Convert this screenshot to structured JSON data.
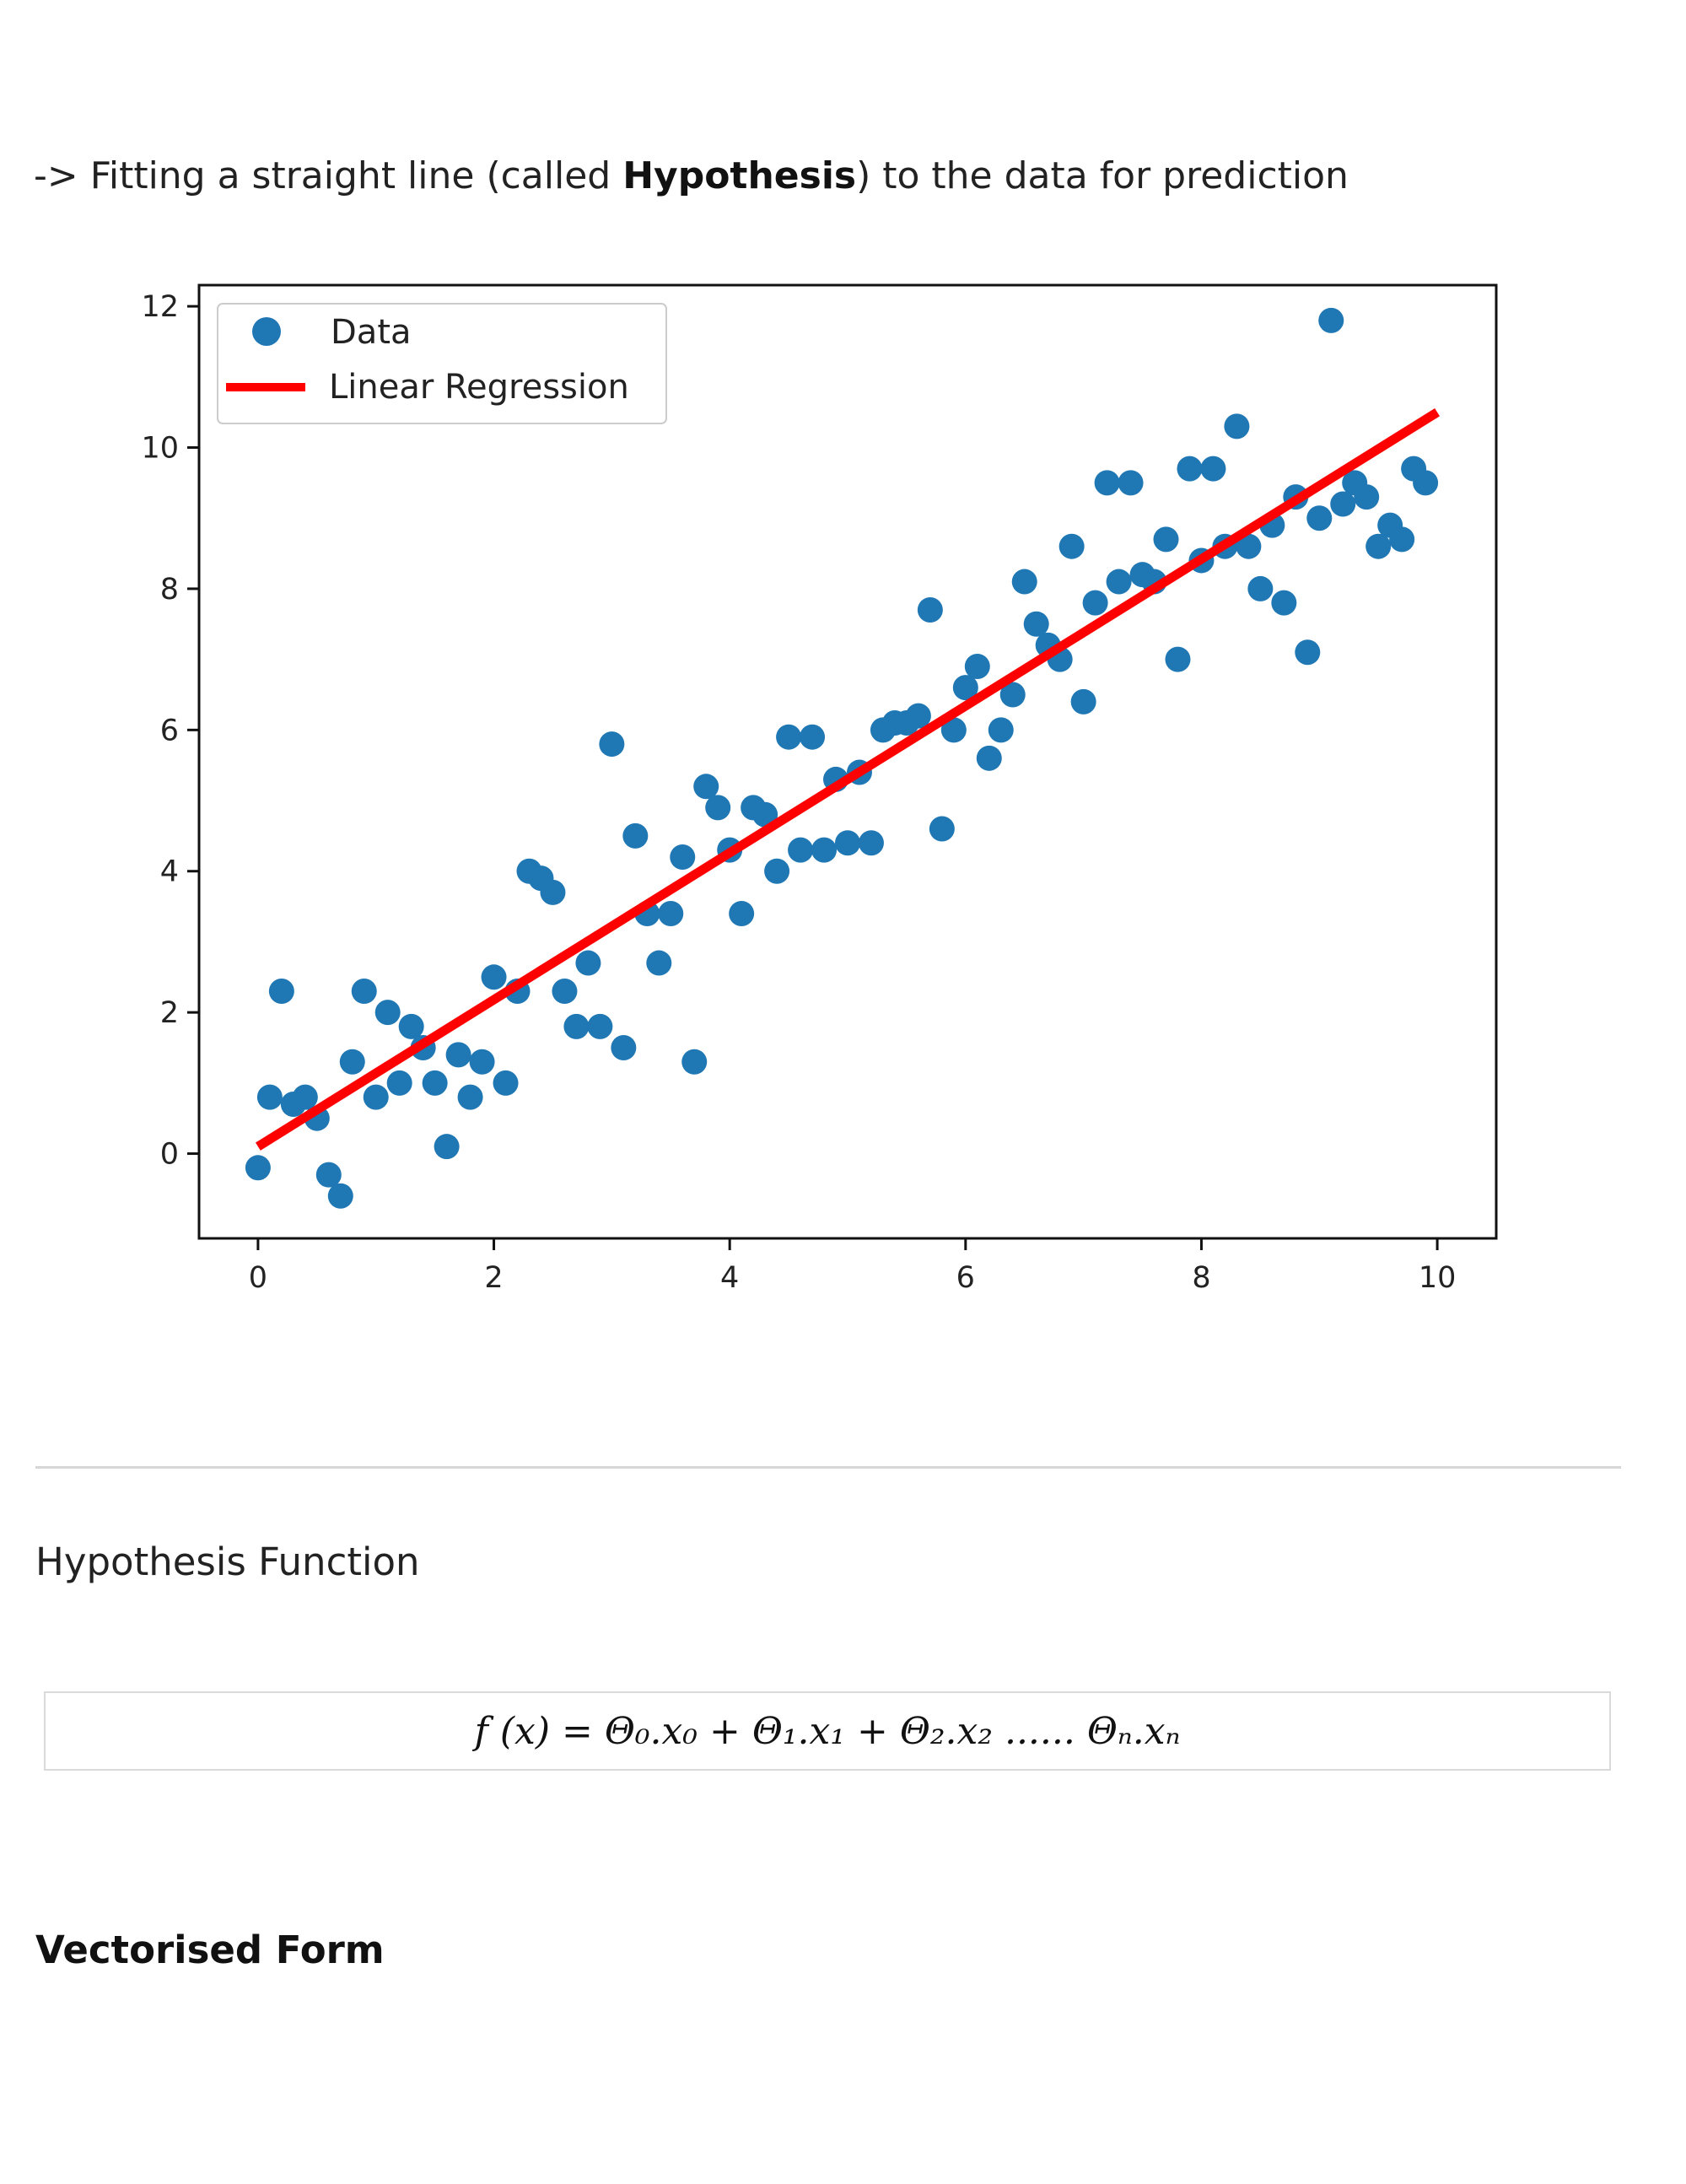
{
  "intro": {
    "prefix": "-> Fitting a straight line (called ",
    "bold": "Hypothesis",
    "suffix": ") to the data for prediction"
  },
  "chart_data": {
    "type": "scatter",
    "xlim": [
      -0.5,
      10.5
    ],
    "ylim": [
      -1.2,
      12.3
    ],
    "x_ticks": [
      0,
      2,
      4,
      6,
      8,
      10
    ],
    "y_ticks": [
      0,
      2,
      4,
      6,
      8,
      10,
      12
    ],
    "grid": false,
    "legend_position": "top-left",
    "colors": {
      "data": "#1f77b4",
      "line": "#ff0000"
    },
    "series": [
      {
        "name": "Data",
        "kind": "scatter",
        "points": [
          [
            0.0,
            -0.2
          ],
          [
            0.1,
            0.8
          ],
          [
            0.2,
            2.3
          ],
          [
            0.3,
            0.7
          ],
          [
            0.4,
            0.8
          ],
          [
            0.5,
            0.5
          ],
          [
            0.6,
            -0.3
          ],
          [
            0.7,
            -0.6
          ],
          [
            0.8,
            1.3
          ],
          [
            0.9,
            2.3
          ],
          [
            1.0,
            0.8
          ],
          [
            1.1,
            2.0
          ],
          [
            1.2,
            1.0
          ],
          [
            1.3,
            1.8
          ],
          [
            1.4,
            1.5
          ],
          [
            1.5,
            1.0
          ],
          [
            1.6,
            0.1
          ],
          [
            1.7,
            1.4
          ],
          [
            1.8,
            0.8
          ],
          [
            1.9,
            1.3
          ],
          [
            2.0,
            2.5
          ],
          [
            2.1,
            1.0
          ],
          [
            2.2,
            2.3
          ],
          [
            2.3,
            4.0
          ],
          [
            2.4,
            3.9
          ],
          [
            2.5,
            3.7
          ],
          [
            2.6,
            2.3
          ],
          [
            2.7,
            1.8
          ],
          [
            2.8,
            2.7
          ],
          [
            2.9,
            1.8
          ],
          [
            3.0,
            5.8
          ],
          [
            3.1,
            1.5
          ],
          [
            3.2,
            4.5
          ],
          [
            3.3,
            3.4
          ],
          [
            3.4,
            2.7
          ],
          [
            3.5,
            3.4
          ],
          [
            3.6,
            4.2
          ],
          [
            3.7,
            1.3
          ],
          [
            3.8,
            5.2
          ],
          [
            3.9,
            4.9
          ],
          [
            4.0,
            4.3
          ],
          [
            4.1,
            3.4
          ],
          [
            4.2,
            4.9
          ],
          [
            4.3,
            4.8
          ],
          [
            4.4,
            4.0
          ],
          [
            4.5,
            5.9
          ],
          [
            4.6,
            4.3
          ],
          [
            4.7,
            5.9
          ],
          [
            4.8,
            4.3
          ],
          [
            4.9,
            5.3
          ],
          [
            5.0,
            4.4
          ],
          [
            5.1,
            5.4
          ],
          [
            5.2,
            4.4
          ],
          [
            5.3,
            6.0
          ],
          [
            5.4,
            6.1
          ],
          [
            5.5,
            6.1
          ],
          [
            5.6,
            6.2
          ],
          [
            5.7,
            7.7
          ],
          [
            5.8,
            4.6
          ],
          [
            5.9,
            6.0
          ],
          [
            6.0,
            6.6
          ],
          [
            6.1,
            6.9
          ],
          [
            6.2,
            5.6
          ],
          [
            6.3,
            6.0
          ],
          [
            6.4,
            6.5
          ],
          [
            6.5,
            8.1
          ],
          [
            6.6,
            7.5
          ],
          [
            6.7,
            7.2
          ],
          [
            6.8,
            7.0
          ],
          [
            6.9,
            8.6
          ],
          [
            7.0,
            6.4
          ],
          [
            7.1,
            7.8
          ],
          [
            7.2,
            9.5
          ],
          [
            7.3,
            8.1
          ],
          [
            7.4,
            9.5
          ],
          [
            7.5,
            8.2
          ],
          [
            7.6,
            8.1
          ],
          [
            7.7,
            8.7
          ],
          [
            7.8,
            7.0
          ],
          [
            7.9,
            9.7
          ],
          [
            8.0,
            8.4
          ],
          [
            8.1,
            9.7
          ],
          [
            8.2,
            8.6
          ],
          [
            8.3,
            10.3
          ],
          [
            8.4,
            8.6
          ],
          [
            8.5,
            8.0
          ],
          [
            8.6,
            8.9
          ],
          [
            8.7,
            7.8
          ],
          [
            8.8,
            9.3
          ],
          [
            8.9,
            7.1
          ],
          [
            9.0,
            9.0
          ],
          [
            9.1,
            11.8
          ],
          [
            9.2,
            9.2
          ],
          [
            9.3,
            9.5
          ],
          [
            9.4,
            9.3
          ],
          [
            9.5,
            8.6
          ],
          [
            9.6,
            8.9
          ],
          [
            9.7,
            8.7
          ],
          [
            9.8,
            9.7
          ],
          [
            9.9,
            9.5
          ]
        ]
      },
      {
        "name": "Linear Regression",
        "kind": "line",
        "points": [
          [
            0.0,
            0.1
          ],
          [
            10.0,
            10.5
          ]
        ]
      }
    ]
  },
  "sections": {
    "hypothesis_title": "Hypothesis Function",
    "vectorised_title": "Vectorised Form"
  },
  "formula": {
    "text": "f (x) = Θ₀.x₀ + Θ₁.x₁ + Θ₂.x₂  ......  Θₙ.xₙ"
  }
}
